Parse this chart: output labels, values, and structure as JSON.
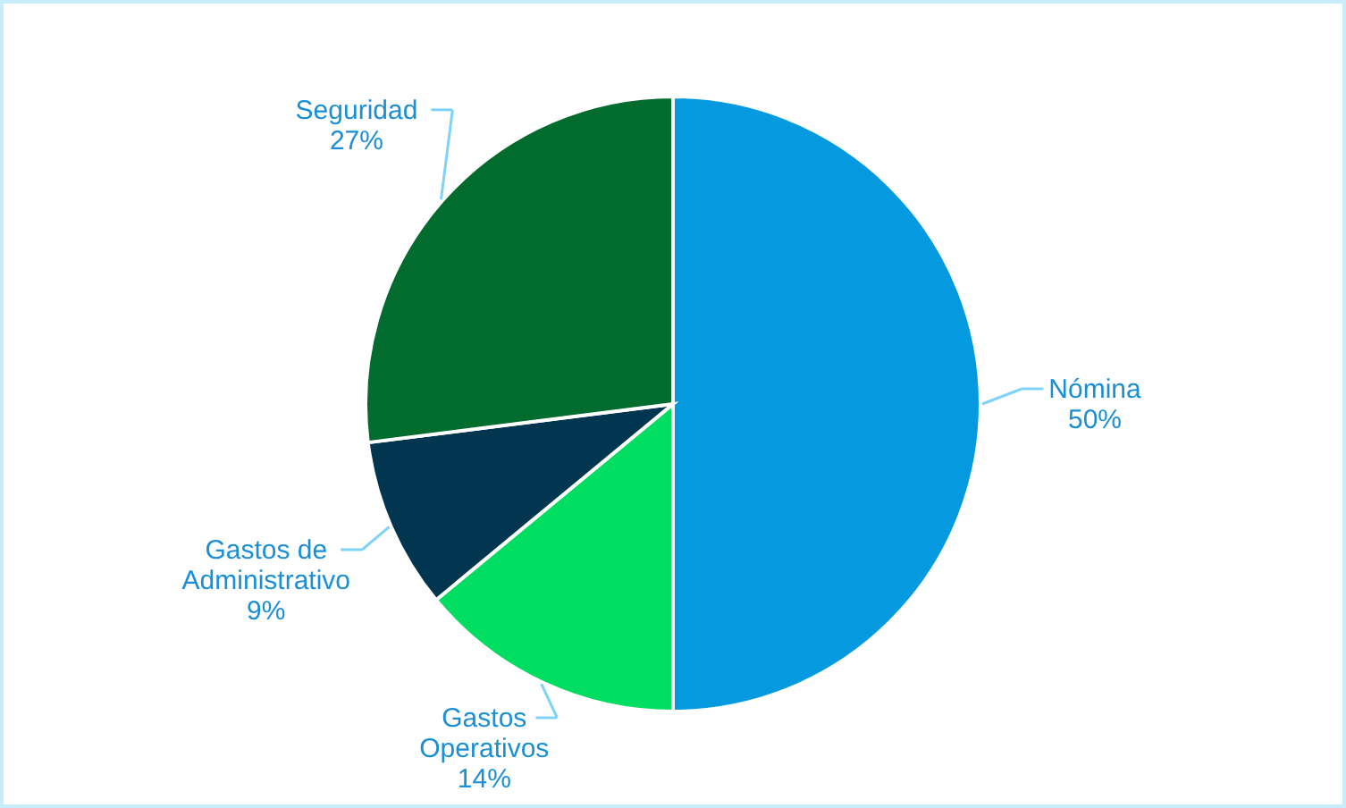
{
  "chart_data": {
    "type": "pie",
    "categories": [
      "Nómina",
      "Gastos Operativos",
      "Gastos de Administrativo",
      "Seguridad"
    ],
    "values": [
      50,
      14,
      9,
      27
    ],
    "value_labels": [
      "50%",
      "14%",
      "9%",
      "27%"
    ],
    "colors": [
      "#0599e0",
      "#00dd60",
      "#02354f",
      "#026c2e"
    ]
  }
}
